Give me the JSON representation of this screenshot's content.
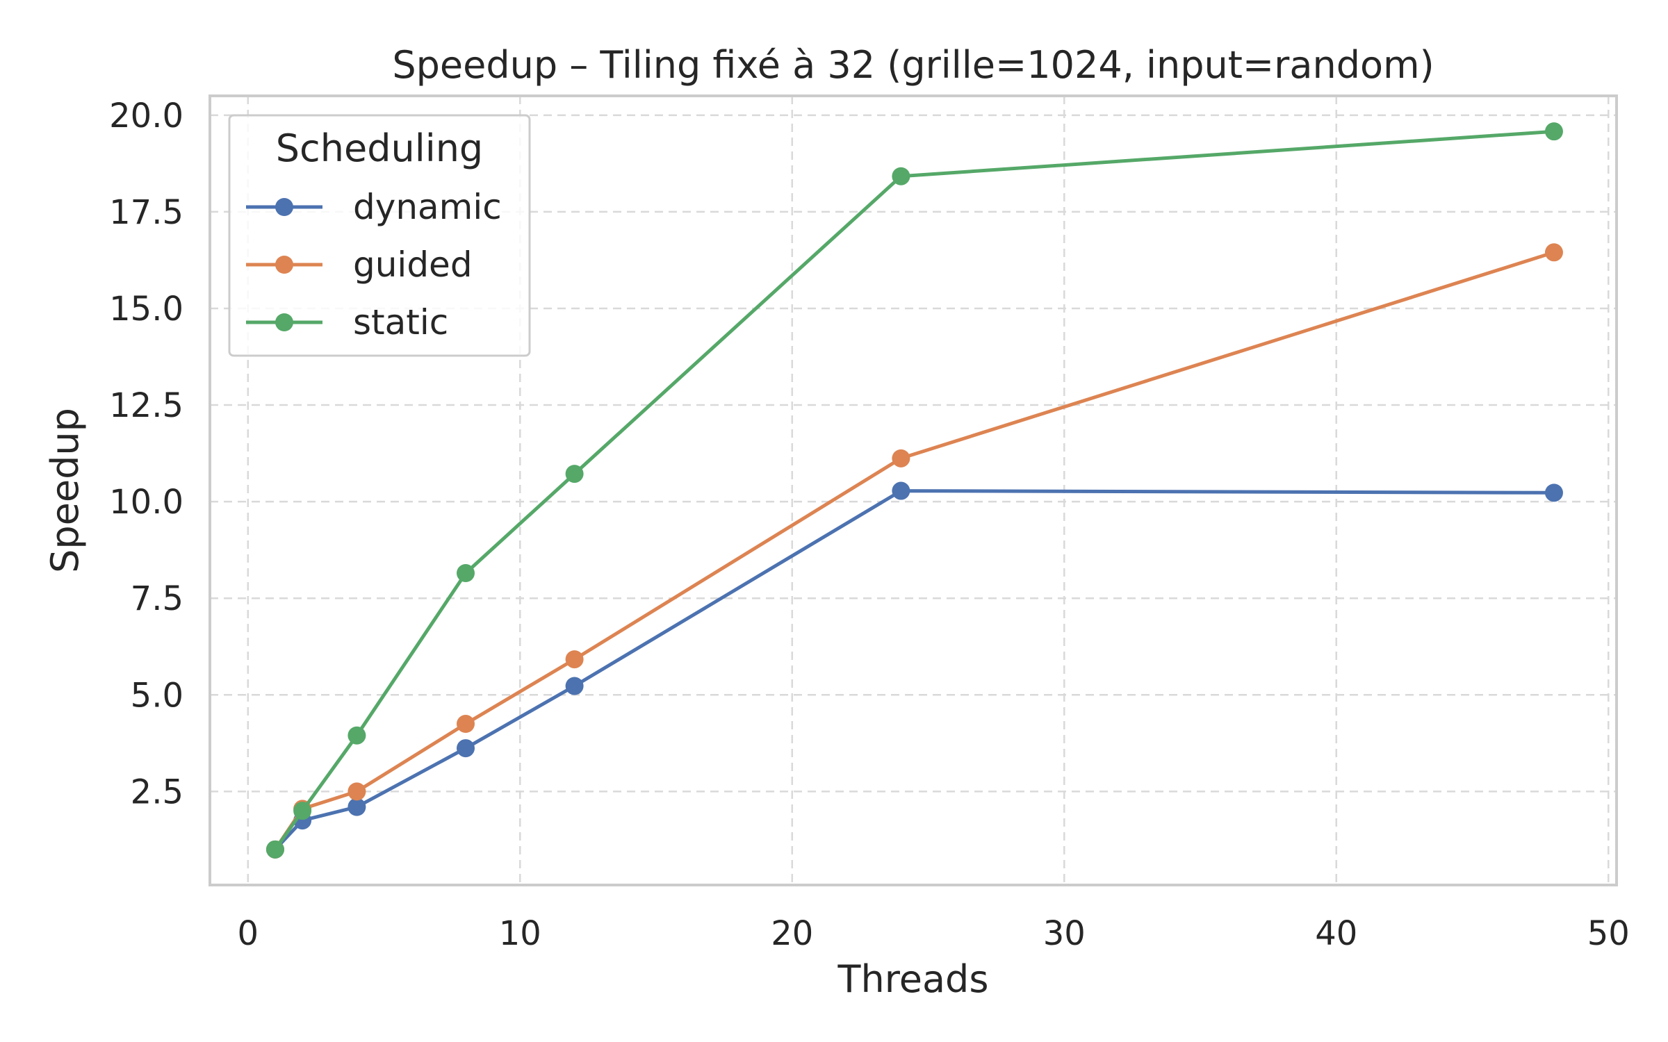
{
  "chart_data": {
    "type": "line",
    "title": "Speedup – Tiling fixé à 32 (grille=1024, input=random)",
    "xlabel": "Threads",
    "ylabel": "Speedup",
    "xlim": [
      -1.4,
      50.3
    ],
    "ylim": [
      0.08,
      20.5
    ],
    "xticks": [
      0,
      10,
      20,
      30,
      40,
      50
    ],
    "xtick_labels": [
      "0",
      "10",
      "20",
      "30",
      "40",
      "50"
    ],
    "yticks": [
      2.5,
      5.0,
      7.5,
      10.0,
      12.5,
      15.0,
      17.5,
      20.0
    ],
    "ytick_labels": [
      "2.5",
      "5.0",
      "7.5",
      "10.0",
      "12.5",
      "15.0",
      "17.5",
      "20.0"
    ],
    "grid": true,
    "legend": {
      "title": "Scheduling",
      "position": "top-left"
    },
    "x": [
      1,
      2,
      4,
      8,
      12,
      24,
      48
    ],
    "series": [
      {
        "name": "dynamic",
        "color": "#4c72b0",
        "values": [
          1.0,
          1.75,
          2.1,
          3.62,
          5.23,
          10.28,
          10.23
        ]
      },
      {
        "name": "guided",
        "color": "#dd8452",
        "values": [
          1.0,
          2.05,
          2.5,
          4.25,
          5.92,
          11.12,
          16.45
        ]
      },
      {
        "name": "static",
        "color": "#55a868",
        "values": [
          1.0,
          2.0,
          3.95,
          8.15,
          10.72,
          18.42,
          19.58
        ]
      }
    ]
  }
}
